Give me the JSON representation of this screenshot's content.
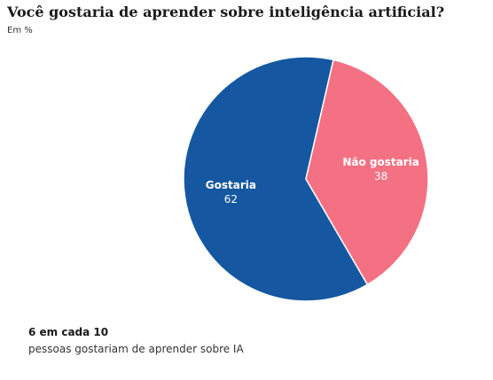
{
  "title": "Você gostaria de aprender sobre inteligência artificial?",
  "subtitle": "Em %",
  "chart_data": {
    "type": "pie",
    "title": "Você gostaria de aprender sobre inteligência artificial?",
    "subtitle": "Em %",
    "slices": [
      {
        "label": "Gostaria",
        "value": 62,
        "value_text": "62",
        "color": "#1558a1"
      },
      {
        "label": "Não gostaria",
        "value": 38,
        "value_text": "38",
        "color": "#f47083"
      }
    ]
  },
  "footer": {
    "headline": "6 em cada 10",
    "text": "pessoas gostariam de aprender sobre IA"
  }
}
